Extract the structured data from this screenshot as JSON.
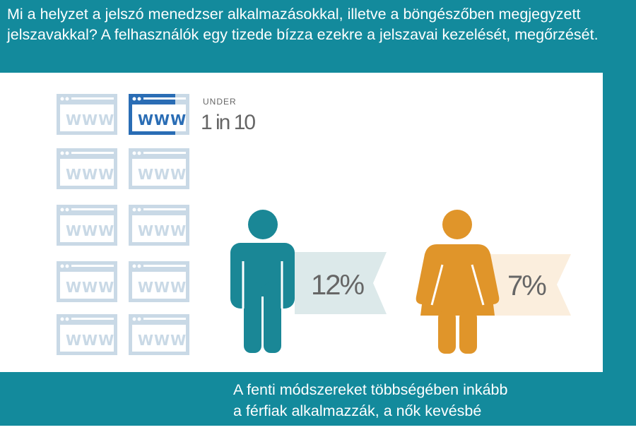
{
  "header": {
    "title": "Mi a helyzet a jelszó menedzser alkalmazásokkal, illetve a böngészőben megjegyzett jelszavakkal? A felhasználók egy tizede bízza ezekre a jelszavai kezelését, megőrzését."
  },
  "infographic": {
    "browser_label": "WWW",
    "ratio_prefix": "UNDER",
    "ratio": "1 in 10",
    "men": {
      "value": "12%",
      "color": "#1a8796"
    },
    "women": {
      "value": "7%",
      "color": "#e0952a"
    }
  },
  "footer": {
    "line1": "A fenti módszereket többségében inkább",
    "line2": "a férfiak alkalmazzák, a nők kevésbé"
  },
  "colors": {
    "background": "#138a9c",
    "highlight": "#2a6db5",
    "inactive": "#c9d9e6"
  }
}
